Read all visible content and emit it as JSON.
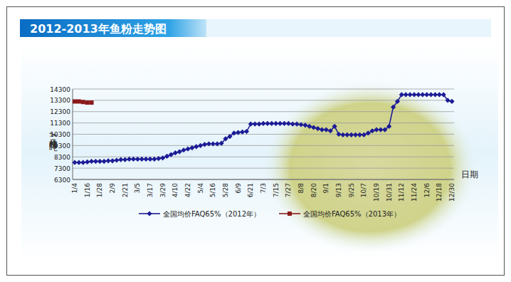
{
  "chart_data": {
    "type": "line",
    "title": "2012-2013年鱼粉走势图",
    "y_label": "价格（元/吨）",
    "x_label": "日期",
    "categories": [
      "1/4",
      null,
      null,
      "1/16",
      null,
      null,
      "1/28",
      null,
      null,
      "2/9",
      null,
      null,
      "2/21",
      null,
      null,
      "3/5",
      null,
      null,
      "3/17",
      null,
      null,
      "3/29",
      null,
      null,
      "4/10",
      null,
      null,
      "4/22",
      null,
      null,
      "5/4",
      null,
      null,
      "5/16",
      null,
      null,
      "5/28",
      null,
      null,
      "6/9",
      null,
      null,
      "6/21",
      null,
      null,
      "7/3",
      null,
      null,
      "7/15",
      null,
      null,
      "7/27",
      null,
      null,
      "8/8",
      null,
      null,
      "8/20",
      null,
      null,
      "9/1",
      null,
      null,
      "9/13",
      null,
      null,
      "9/25",
      null,
      null,
      "10/7",
      null,
      null,
      "10/19",
      null,
      null,
      "10/31",
      null,
      null,
      "11/12",
      null,
      null,
      "11/24",
      null,
      null,
      "12/6",
      null,
      null,
      "12/18",
      null,
      null,
      "12/30"
    ],
    "series": [
      {
        "name": "全国均价FAQ65%（2012年）",
        "color": "#1c1c96",
        "marker": "diamond",
        "values": [
          7800,
          7800,
          7800,
          7850,
          7900,
          7900,
          7900,
          7900,
          7950,
          7950,
          8000,
          8050,
          8050,
          8100,
          8100,
          8100,
          8100,
          8100,
          8100,
          8100,
          8150,
          8200,
          8350,
          8500,
          8650,
          8750,
          8900,
          9000,
          9100,
          9200,
          9300,
          9400,
          9450,
          9450,
          9450,
          9500,
          9900,
          10100,
          10400,
          10450,
          10500,
          10550,
          11200,
          11200,
          11200,
          11250,
          11250,
          11250,
          11250,
          11250,
          11250,
          11250,
          11200,
          11200,
          11150,
          11100,
          11000,
          10900,
          10800,
          10700,
          10700,
          10600,
          11000,
          10300,
          10250,
          10250,
          10250,
          10250,
          10250,
          10250,
          10400,
          10600,
          10700,
          10700,
          10700,
          11000,
          12700,
          13200,
          13800,
          13800,
          13800,
          13800,
          13800,
          13800,
          13800,
          13800,
          13800,
          13800,
          13800,
          13300,
          13200
        ]
      },
      {
        "name": "全国均价FAQ65%（2013年）",
        "color": "#8b1a1a",
        "marker": "square",
        "values": [
          13200,
          13200,
          13150,
          13100,
          13100,
          null,
          null,
          null,
          null,
          null,
          null,
          null,
          null,
          null,
          null,
          null,
          null,
          null,
          null,
          null,
          null,
          null,
          null,
          null,
          null,
          null,
          null,
          null,
          null,
          null,
          null,
          null,
          null,
          null,
          null,
          null,
          null,
          null,
          null,
          null,
          null,
          null,
          null,
          null,
          null,
          null,
          null,
          null,
          null,
          null,
          null,
          null,
          null,
          null,
          null,
          null,
          null,
          null,
          null,
          null,
          null,
          null,
          null,
          null,
          null,
          null,
          null,
          null,
          null,
          null,
          null,
          null,
          null,
          null,
          null,
          null,
          null,
          null,
          null,
          null,
          null,
          null,
          null,
          null,
          null,
          null,
          null,
          null,
          null,
          null,
          null
        ]
      }
    ],
    "ylim": [
      6300,
      14300
    ],
    "yticks": [
      6300,
      7300,
      8300,
      9300,
      10300,
      11300,
      12300,
      13300,
      14300
    ],
    "grid": true,
    "legend": "bottom"
  }
}
